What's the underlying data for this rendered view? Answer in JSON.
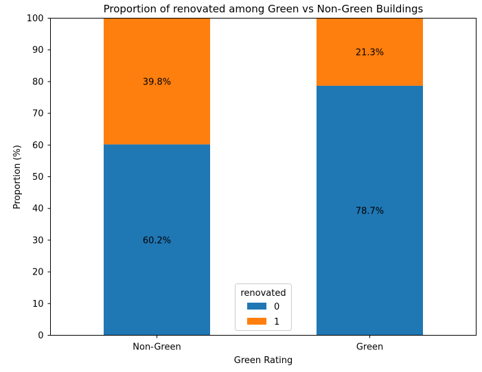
{
  "chart_data": {
    "type": "bar",
    "stacked": true,
    "title": "Proportion of renovated among Green vs Non-Green Buildings",
    "xlabel": "Green Rating",
    "ylabel": "Proportion (%)",
    "ylim": [
      0,
      100
    ],
    "yticks": [
      0,
      10,
      20,
      30,
      40,
      50,
      60,
      70,
      80,
      90,
      100
    ],
    "categories": [
      "Non-Green",
      "Green"
    ],
    "series": [
      {
        "name": "0",
        "color": "#1f77b4",
        "values": [
          60.2,
          78.7
        ],
        "labels": [
          "60.2%",
          "78.7%"
        ]
      },
      {
        "name": "1",
        "color": "#ff7f0e",
        "values": [
          39.8,
          21.3
        ],
        "labels": [
          "39.8%",
          "21.3%"
        ]
      }
    ],
    "legend": {
      "title": "renovated",
      "placement": "bottom-center"
    },
    "grid": false
  }
}
